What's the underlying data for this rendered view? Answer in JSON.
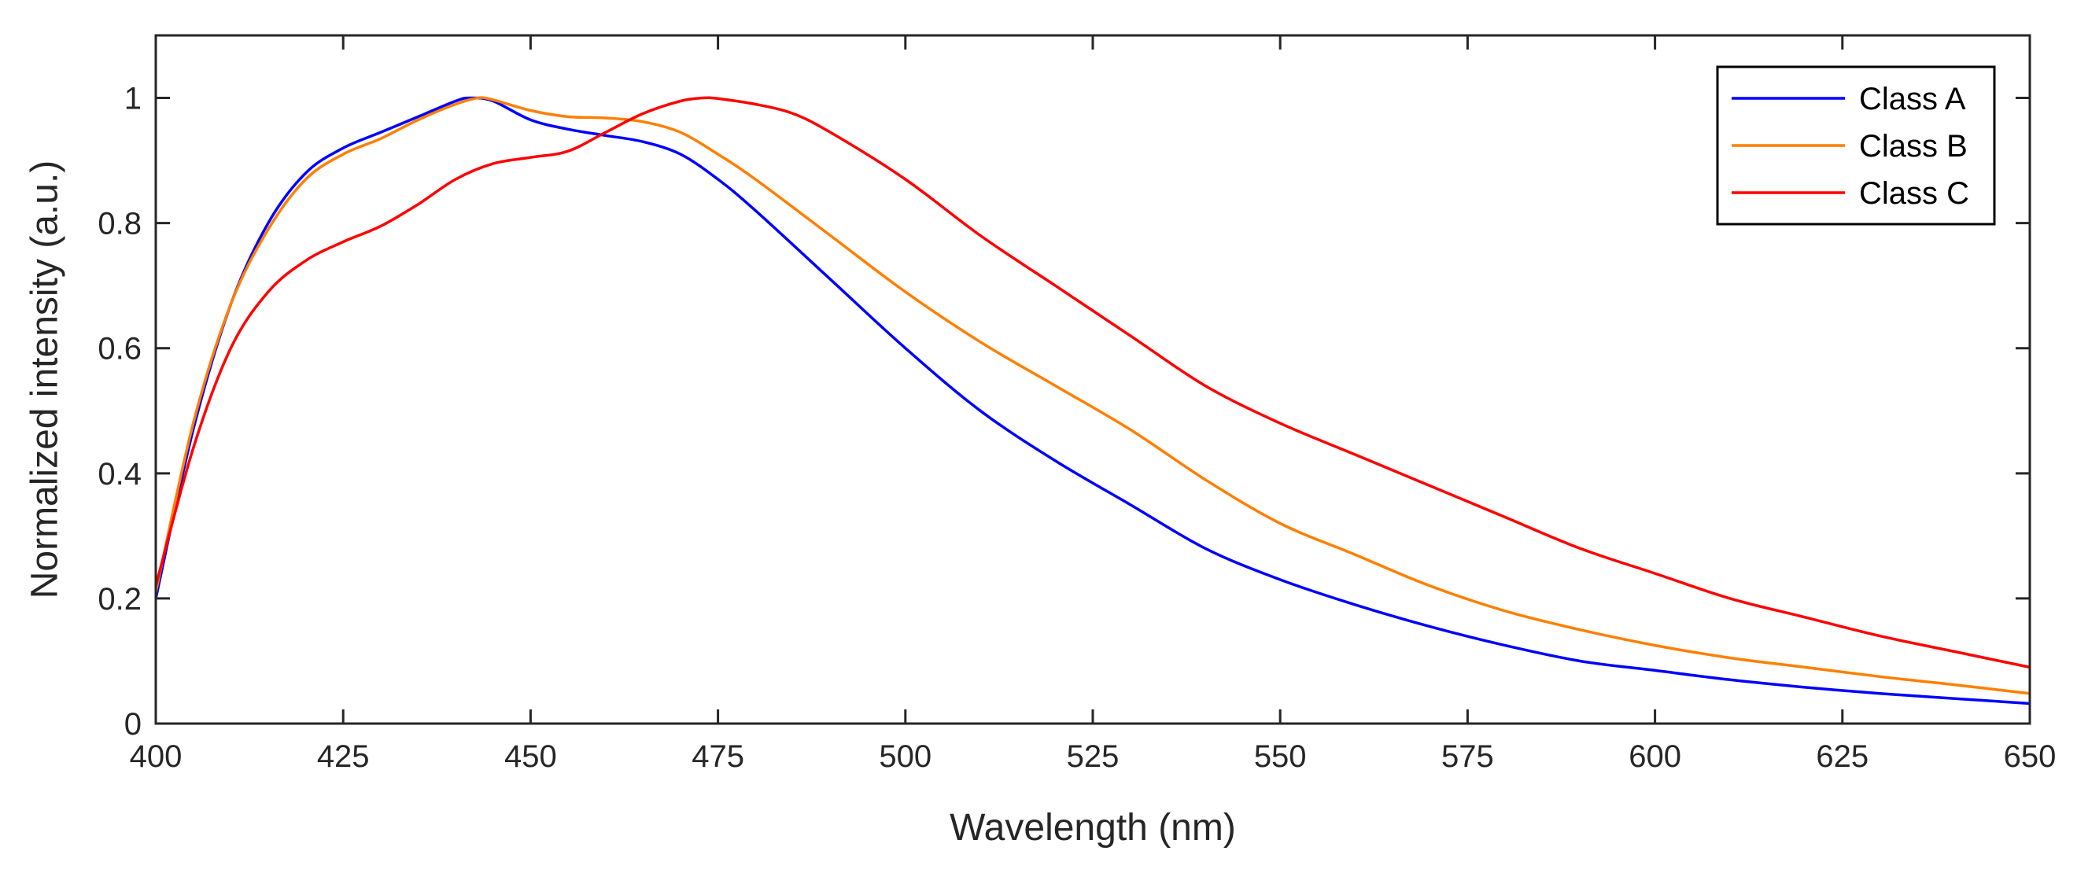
{
  "chart_data": {
    "type": "line",
    "title": "",
    "xlabel": "Wavelength (nm)",
    "ylabel": "Normalized intensity (a.u.)",
    "xlim": [
      400,
      650
    ],
    "ylim": [
      0,
      1.1
    ],
    "xticks": [
      400,
      425,
      450,
      475,
      500,
      525,
      550,
      575,
      600,
      625,
      650
    ],
    "xtick_labels": [
      "400",
      "425",
      "450",
      "475",
      "500",
      "525",
      "550",
      "575",
      "600",
      "625",
      "650"
    ],
    "yticks": [
      0,
      0.2,
      0.4,
      0.6,
      0.8,
      1
    ],
    "ytick_labels": [
      "0",
      "0.2",
      "0.4",
      "0.6",
      "0.8",
      "1"
    ],
    "legend_position": "top-right",
    "grid": false,
    "series": [
      {
        "name": "Class A",
        "color": "#0000ff",
        "x": [
          400,
          405,
          410,
          415,
          420,
          425,
          430,
          435,
          440,
          442,
          445,
          450,
          455,
          460,
          465,
          470,
          475,
          480,
          490,
          500,
          510,
          520,
          530,
          540,
          550,
          560,
          570,
          580,
          590,
          600,
          610,
          620,
          630,
          640,
          650
        ],
        "y": [
          0.2,
          0.47,
          0.67,
          0.8,
          0.88,
          0.92,
          0.945,
          0.97,
          0.995,
          1.0,
          0.995,
          0.965,
          0.95,
          0.94,
          0.93,
          0.91,
          0.87,
          0.82,
          0.71,
          0.6,
          0.5,
          0.42,
          0.35,
          0.28,
          0.23,
          0.19,
          0.155,
          0.125,
          0.1,
          0.085,
          0.07,
          0.058,
          0.048,
          0.04,
          0.032
        ]
      },
      {
        "name": "Class B",
        "color": "#ff7f00",
        "x": [
          400,
          405,
          410,
          415,
          420,
          425,
          430,
          435,
          440,
          443,
          445,
          450,
          455,
          460,
          465,
          470,
          475,
          480,
          490,
          500,
          510,
          520,
          530,
          540,
          550,
          560,
          570,
          580,
          590,
          600,
          610,
          620,
          630,
          640,
          650
        ],
        "y": [
          0.21,
          0.48,
          0.67,
          0.79,
          0.87,
          0.91,
          0.935,
          0.965,
          0.99,
          1.0,
          0.997,
          0.98,
          0.97,
          0.968,
          0.962,
          0.945,
          0.91,
          0.87,
          0.78,
          0.69,
          0.61,
          0.54,
          0.47,
          0.39,
          0.32,
          0.27,
          0.22,
          0.18,
          0.15,
          0.125,
          0.105,
          0.09,
          0.075,
          0.062,
          0.048
        ]
      },
      {
        "name": "Class C",
        "color": "#ff0000",
        "x": [
          400,
          405,
          410,
          415,
          420,
          425,
          430,
          435,
          440,
          445,
          450,
          455,
          460,
          465,
          470,
          473,
          475,
          480,
          485,
          490,
          500,
          510,
          520,
          530,
          540,
          550,
          560,
          570,
          580,
          590,
          600,
          610,
          620,
          630,
          640,
          650
        ],
        "y": [
          0.22,
          0.44,
          0.6,
          0.69,
          0.74,
          0.77,
          0.795,
          0.83,
          0.87,
          0.895,
          0.905,
          0.915,
          0.945,
          0.975,
          0.995,
          1.0,
          0.999,
          0.99,
          0.975,
          0.945,
          0.87,
          0.78,
          0.7,
          0.62,
          0.54,
          0.48,
          0.43,
          0.38,
          0.33,
          0.28,
          0.24,
          0.2,
          0.17,
          0.14,
          0.115,
          0.09
        ]
      }
    ]
  }
}
